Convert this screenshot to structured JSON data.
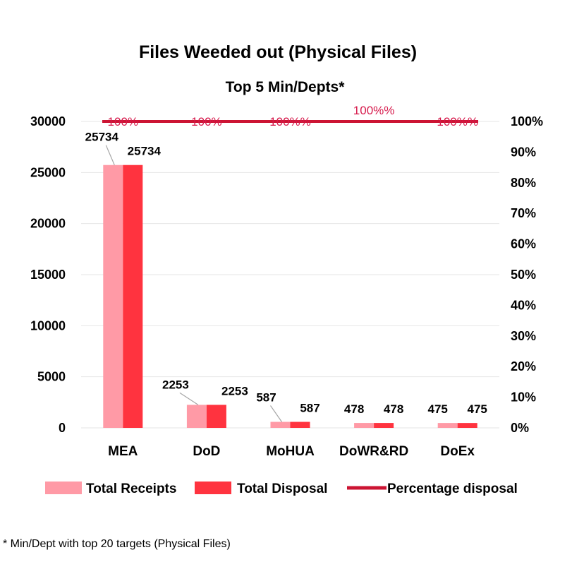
{
  "colors": {
    "receipts": "#ff9aa6",
    "disposal": "#ff333f",
    "percentage": "#cc1433",
    "percentage_label": "#d6184a",
    "grid": "#e6e6e6",
    "leader": "#a6a6a6"
  },
  "chart_data": {
    "type": "bar",
    "title": "Files Weeded out (Physical Files)",
    "subtitle": "Top 5 Min/Depts*",
    "categories": [
      "MEA",
      "DoD",
      "MoHUA",
      "DoWR&RD",
      "DoEx"
    ],
    "series": [
      {
        "name": "Total Receipts",
        "type": "bar",
        "axis": "left",
        "values": [
          25734,
          2253,
          587,
          478,
          475
        ],
        "labels": [
          "25734",
          "2253",
          "587",
          "478",
          "475"
        ]
      },
      {
        "name": "Total Disposal",
        "type": "bar",
        "axis": "left",
        "values": [
          25734,
          2253,
          587,
          478,
          475
        ],
        "labels": [
          "25734",
          "2253",
          "587",
          "478",
          "475"
        ]
      },
      {
        "name": "Percentage disposal",
        "type": "line",
        "axis": "right",
        "values": [
          100,
          100,
          100,
          100,
          100
        ],
        "labels": [
          "100%",
          "100%",
          "100%%",
          "100%%",
          "100%%"
        ]
      }
    ],
    "y_left": {
      "ylim": [
        0,
        30000
      ],
      "ticks": [
        "0",
        "5000",
        "10000",
        "15000",
        "20000",
        "25000",
        "30000"
      ]
    },
    "y_right": {
      "ylim": [
        0,
        100
      ],
      "ticks": [
        "0%",
        "10%",
        "20%",
        "30%",
        "40%",
        "50%",
        "60%",
        "70%",
        "80%",
        "90%",
        "100%"
      ]
    },
    "grid": true,
    "legend_position": "bottom"
  },
  "footnote": "* Min/Dept with top 20 targets (Physical Files)"
}
